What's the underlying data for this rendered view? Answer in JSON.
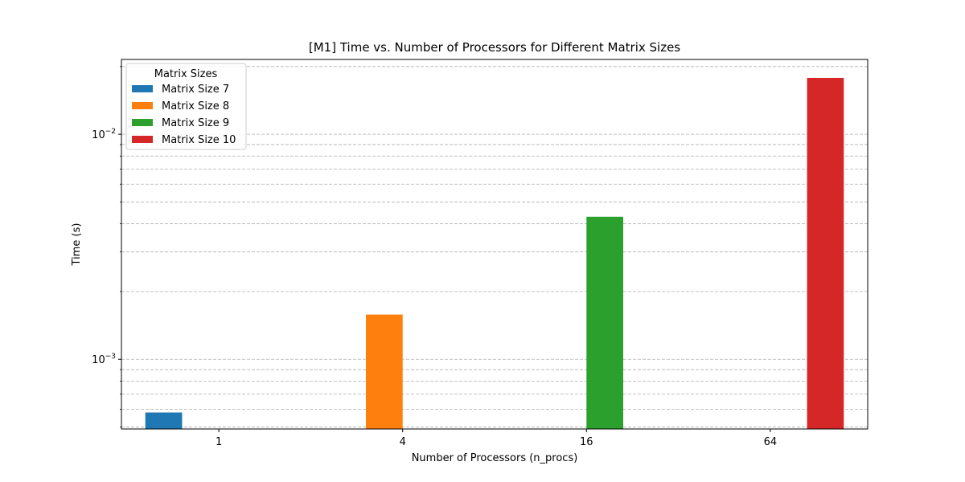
{
  "chart_data": {
    "type": "bar",
    "title": "[M1] Time vs. Number of Processors for Different Matrix Sizes",
    "xlabel": "Number of Processors (n_procs)",
    "ylabel": "Time (s)",
    "categories": [
      "1",
      "4",
      "16",
      "64"
    ],
    "yscale": "log",
    "ylim": [
      0.00049,
      0.0215
    ],
    "yticks": [
      {
        "value": 0.001,
        "base": "10",
        "exp": "−3"
      },
      {
        "value": 0.01,
        "base": "10",
        "exp": "−2"
      }
    ],
    "grid": "y-major-and-minor-dashed",
    "legend": {
      "title": "Matrix Sizes",
      "placement": "top-left"
    },
    "series": [
      {
        "name": "Matrix Size 7",
        "color": "#1f77b4",
        "values": [
          0.00058,
          null,
          null,
          null
        ]
      },
      {
        "name": "Matrix Size 8",
        "color": "#ff7f0e",
        "values": [
          null,
          0.00158,
          null,
          null
        ]
      },
      {
        "name": "Matrix Size 9",
        "color": "#2ca02c",
        "values": [
          null,
          null,
          0.0043,
          null
        ]
      },
      {
        "name": "Matrix Size 10",
        "color": "#d62728",
        "values": [
          null,
          null,
          null,
          0.0178
        ]
      }
    ]
  }
}
